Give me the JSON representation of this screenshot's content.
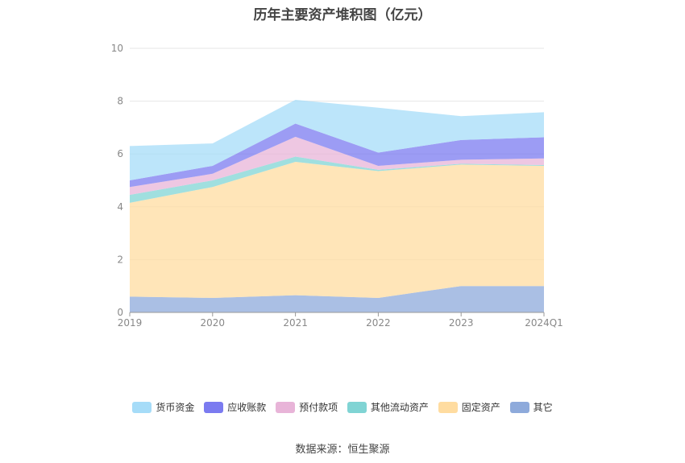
{
  "title": "历年主要资产堆积图（亿元）",
  "source_text": "数据来源：恒生聚源",
  "chart_data": {
    "type": "area",
    "stacked": true,
    "title": "历年主要资产堆积图（亿元）",
    "categories": [
      "2019",
      "2020",
      "2021",
      "2022",
      "2023",
      "2024Q1"
    ],
    "yticks": [
      "0",
      "2",
      "4",
      "6",
      "8",
      "10"
    ],
    "ylim": [
      0,
      10
    ],
    "grid": true,
    "legend_position": "bottom",
    "series": [
      {
        "name": "其它",
        "color": "#8eaadb",
        "values": [
          0.6,
          0.55,
          0.65,
          0.55,
          1.0,
          1.0
        ]
      },
      {
        "name": "固定资产",
        "color": "#ffdca0",
        "values": [
          3.55,
          4.2,
          5.05,
          4.8,
          4.6,
          4.55
        ]
      },
      {
        "name": "其他流动资产",
        "color": "#80d4d4",
        "values": [
          0.3,
          0.25,
          0.2,
          0.05,
          0.03,
          0.03
        ]
      },
      {
        "name": "预付款项",
        "color": "#e8b4d8",
        "values": [
          0.3,
          0.25,
          0.75,
          0.15,
          0.15,
          0.25
        ]
      },
      {
        "name": "应收账款",
        "color": "#7b7bf0",
        "values": [
          0.25,
          0.3,
          0.5,
          0.5,
          0.75,
          0.8
        ]
      },
      {
        "name": "货币资金",
        "color": "#a6dcf8",
        "values": [
          1.3,
          0.85,
          0.9,
          1.7,
          0.9,
          0.95
        ]
      }
    ]
  },
  "legend": [
    {
      "label": "货币资金",
      "color": "#a6dcf8"
    },
    {
      "label": "应收账款",
      "color": "#7b7bf0"
    },
    {
      "label": "预付款项",
      "color": "#e8b4d8"
    },
    {
      "label": "其他流动资产",
      "color": "#80d4d4"
    },
    {
      "label": "固定资产",
      "color": "#ffdca0"
    },
    {
      "label": "其它",
      "color": "#8eaadb"
    }
  ]
}
